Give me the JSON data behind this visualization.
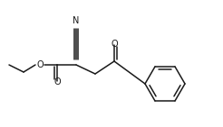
{
  "bg_color": "#ffffff",
  "line_color": "#1a1a1a",
  "line_width": 1.1,
  "font_size": 7.0,
  "figsize": [
    2.46,
    1.41
  ],
  "dpi": 100,
  "xlim": [
    0,
    246
  ],
  "ylim": [
    0,
    141
  ]
}
